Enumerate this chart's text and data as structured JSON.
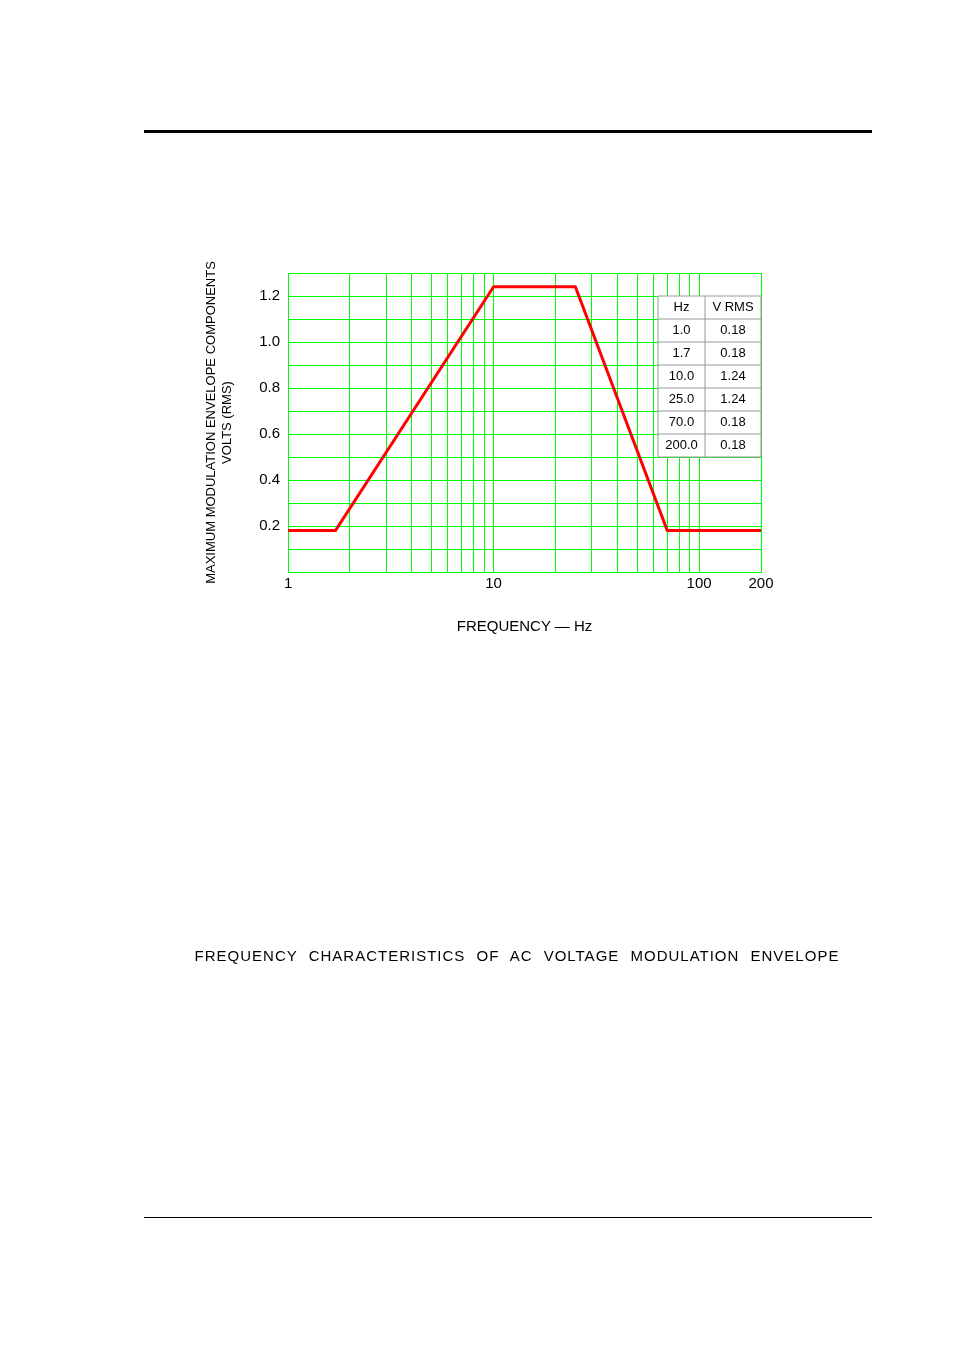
{
  "chart_data": {
    "type": "line",
    "title": "FREQUENCY CHARACTERISTICS OF AC VOLTAGE MODULATION ENVELOPE",
    "xlabel": "FREQUENCY — Hz",
    "ylabel": "MAXIMUM MODULATION ENVELOPE COMPONENTS\nVOLTS (RMS)",
    "annotations": [
      "Hz",
      "V RMS",
      "1.0",
      "0.18",
      "1.7",
      "0.18",
      "10.0",
      "1.24",
      "25.0",
      "1.24",
      "70.0",
      "0.18",
      "200.0",
      "0.18"
    ],
    "x": [
      1,
      1.7,
      10,
      25,
      70,
      200
    ],
    "series": [
      {
        "color": "#ff0000",
        "values": [
          0.18,
          0.18,
          1.24,
          1.24,
          0.18,
          0.18
        ]
      }
    ],
    "log": "x",
    "grid": true,
    "legend": false,
    "marker": "none",
    "line_style": "solid",
    "xlim": [
      1,
      200
    ],
    "xticks": [
      1,
      {
        "value": 2,
        "label": null
      },
      {
        "value": 3,
        "label": null
      },
      {
        "value": 4,
        "label": null
      },
      {
        "value": 5,
        "label": null
      },
      {
        "value": 6,
        "label": null
      },
      {
        "value": 7,
        "label": null
      },
      {
        "value": 8,
        "label": null
      },
      {
        "value": 9,
        "label": null
      },
      10,
      {
        "value": 20,
        "label": null
      },
      {
        "value": 30,
        "label": null
      },
      {
        "value": 40,
        "label": null
      },
      {
        "value": 50,
        "label": null
      },
      {
        "value": 60,
        "label": null
      },
      {
        "value": 70,
        "label": null
      },
      {
        "value": 80,
        "label": null
      },
      {
        "value": 90,
        "label": null
      },
      100,
      200
    ],
    "ylim": [
      0,
      1.3
    ],
    "yticks": [
      {
        "value": 0,
        "label": null
      },
      {
        "value": 0.1,
        "label": null
      },
      0.2,
      {
        "value": 0.3,
        "label": null
      },
      0.4,
      {
        "value": 0.5,
        "label": null
      },
      0.6,
      {
        "value": 0.7,
        "label": null
      },
      0.8,
      {
        "value": 0.9,
        "label": null
      },
      {
        "value": 1,
        "label": "1.0"
      },
      {
        "value": 1.1,
        "label": null
      },
      1.2,
      {
        "value": 1.3,
        "label": null
      }
    ]
  }
}
